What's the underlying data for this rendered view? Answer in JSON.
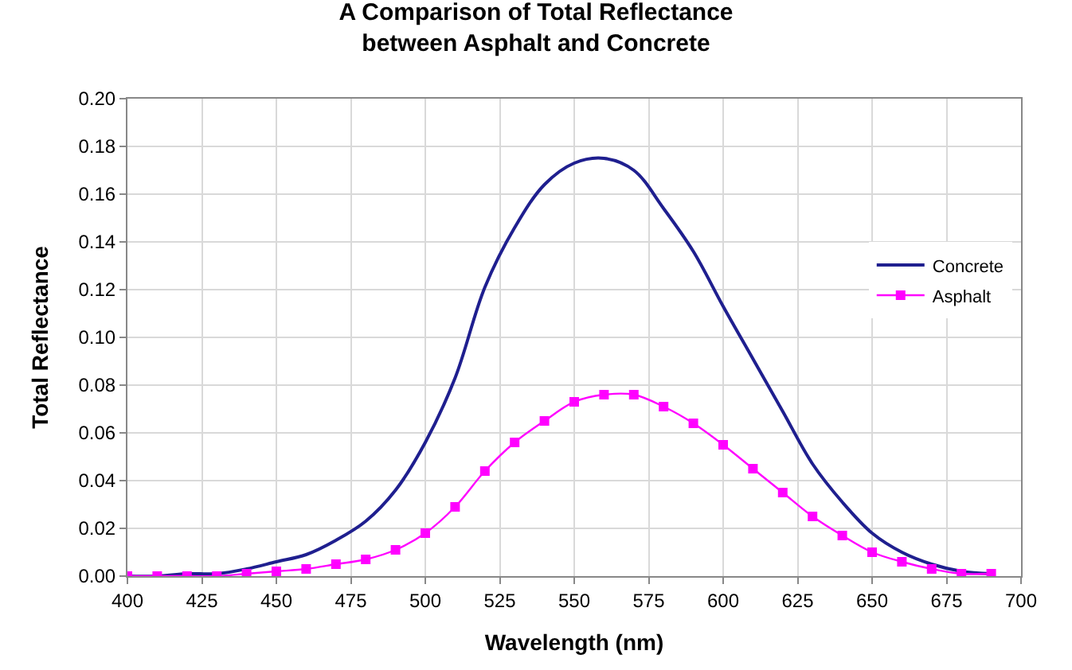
{
  "chart_data": {
    "type": "line",
    "title": "A Comparison of Total Reflectance between Asphalt and Concrete",
    "xlabel": "Wavelength (nm)",
    "ylabel": "Total Reflectance",
    "x": [
      400,
      410,
      420,
      430,
      440,
      450,
      460,
      470,
      480,
      490,
      500,
      510,
      520,
      530,
      540,
      550,
      560,
      570,
      580,
      590,
      600,
      610,
      620,
      630,
      640,
      650,
      660,
      670,
      680,
      690
    ],
    "series": [
      {
        "name": "Concrete",
        "color": "#1f1f8f",
        "marker": "none",
        "values": [
          0,
          0,
          0.001,
          0.001,
          0.003,
          0.006,
          0.009,
          0.015,
          0.023,
          0.036,
          0.056,
          0.083,
          0.121,
          0.146,
          0.164,
          0.173,
          0.175,
          0.17,
          0.154,
          0.136,
          0.113,
          0.091,
          0.069,
          0.047,
          0.031,
          0.018,
          0.01,
          0.005,
          0.002,
          0.001
        ]
      },
      {
        "name": "Asphalt",
        "color": "#ff00ff",
        "marker": "square",
        "values": [
          0,
          0,
          0,
          0,
          0.001,
          0.002,
          0.003,
          0.005,
          0.007,
          0.011,
          0.018,
          0.029,
          0.044,
          0.056,
          0.065,
          0.073,
          0.076,
          0.076,
          0.071,
          0.064,
          0.055,
          0.045,
          0.035,
          0.025,
          0.017,
          0.01,
          0.006,
          0.003,
          0.001,
          0.001
        ]
      }
    ],
    "xlim": [
      400,
      700
    ],
    "xticks": [
      400,
      425,
      450,
      475,
      500,
      525,
      550,
      575,
      600,
      625,
      650,
      675,
      700
    ],
    "ylim": [
      0,
      0.2
    ],
    "yticks": [
      {
        "value": 0,
        "label": "0.00"
      },
      {
        "value": 0.02,
        "label": "0.02"
      },
      {
        "value": 0.04,
        "label": "0.04"
      },
      {
        "value": 0.06,
        "label": "0.06"
      },
      {
        "value": 0.08,
        "label": "0.08"
      },
      {
        "value": 0.1,
        "label": "0.10"
      },
      {
        "value": 0.12,
        "label": "0.12"
      },
      {
        "value": 0.14,
        "label": "0.14"
      },
      {
        "value": 0.16,
        "label": "0.16"
      },
      {
        "value": 0.18,
        "label": "0.18"
      },
      {
        "value": 0.2,
        "label": "0.20"
      }
    ],
    "grid": true,
    "legend": "right"
  }
}
